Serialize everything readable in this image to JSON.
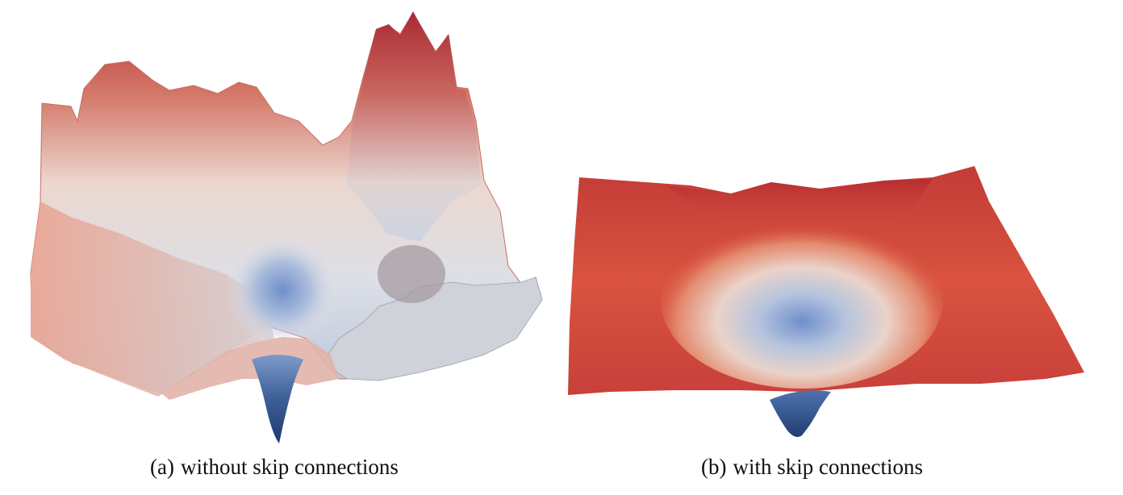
{
  "figure": {
    "panels": [
      {
        "label": "(a)",
        "caption": "without skip connections"
      },
      {
        "label": "(b)",
        "caption": "with skip connections"
      }
    ],
    "colors": {
      "high_loss": "#b8333a",
      "mid_loss": "#e9ddd6",
      "low_loss": "#2e4f86"
    }
  }
}
